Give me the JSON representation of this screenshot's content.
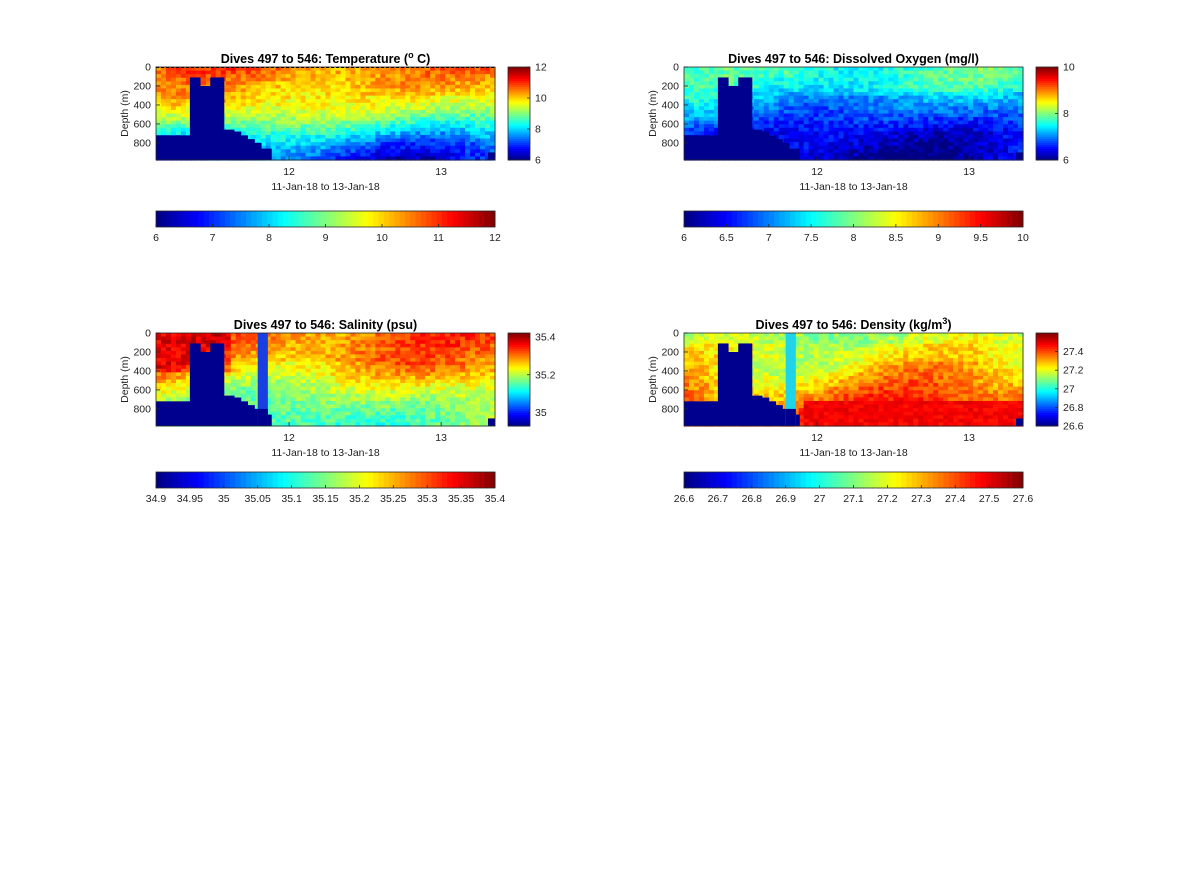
{
  "figure": {
    "panels": [
      {
        "title_main": "Dives 497 to 546: Temperature (",
        "title_sup": "o",
        "title_end": " C)",
        "ylabel": "Depth (m)",
        "xlabel": "11-Jan-18 to 13-Jan-18",
        "ytick_labels": [
          "0",
          "200",
          "400",
          "600",
          "800"
        ],
        "xtick_labels": [
          "12",
          "13"
        ],
        "side_cbar_labels": [
          "12",
          "10",
          "8",
          "6"
        ],
        "bottom_cbar_labels": [
          "6",
          "7",
          "8",
          "9",
          "10",
          "11",
          "12"
        ]
      },
      {
        "title_main": "Dives 497 to 546: Dissolved Oxygen (mg/l)",
        "title_sup": "",
        "title_end": "",
        "ylabel": "Depth (m)",
        "xlabel": "11-Jan-18 to 13-Jan-18",
        "ytick_labels": [
          "0",
          "200",
          "400",
          "600",
          "800"
        ],
        "xtick_labels": [
          "12",
          "13"
        ],
        "side_cbar_labels": [
          "10",
          "8",
          "6"
        ],
        "bottom_cbar_labels": [
          "6",
          "6.5",
          "7",
          "7.5",
          "8",
          "8.5",
          "9",
          "9.5",
          "10"
        ]
      },
      {
        "title_main": "Dives 497 to 546: Salinity (psu)",
        "title_sup": "",
        "title_end": "",
        "ylabel": "Depth (m)",
        "xlabel": "11-Jan-18 to 13-Jan-18",
        "ytick_labels": [
          "0",
          "200",
          "400",
          "600",
          "800"
        ],
        "xtick_labels": [
          "12",
          "13"
        ],
        "side_cbar_labels": [
          "35.4",
          "35.2",
          "35"
        ],
        "bottom_cbar_labels": [
          "34.9",
          "34.95",
          "35",
          "35.05",
          "35.1",
          "35.15",
          "35.2",
          "35.25",
          "35.3",
          "35.35",
          "35.4"
        ]
      },
      {
        "title_main": "Dives 497 to 546: Density (kg/m",
        "title_sup": "3",
        "title_end": ")",
        "ylabel": "Depth (m)",
        "xlabel": "11-Jan-18 to 13-Jan-18",
        "ytick_labels": [
          "0",
          "200",
          "400",
          "600",
          "800"
        ],
        "xtick_labels": [
          "12",
          "13"
        ],
        "side_cbar_labels": [
          "27.4",
          "27.2",
          "27",
          "26.8",
          "26.6"
        ],
        "bottom_cbar_labels": [
          "26.6",
          "26.7",
          "26.8",
          "26.9",
          "27",
          "27.1",
          "27.2",
          "27.3",
          "27.4",
          "27.5",
          "27.6"
        ]
      }
    ]
  },
  "chart_data": [
    {
      "type": "heatmap",
      "variable": "temperature",
      "title": "Dives 497 to 546: Temperature (o C)",
      "xlabel": "11-Jan-18 to 13-Jan-18",
      "ylabel": "Depth (m)",
      "xlim": [
        "2018-01-11T03:00",
        "2018-01-13T08:30"
      ],
      "ylim": [
        980,
        0
      ],
      "y_reversed": true,
      "xticks": [
        "2018-01-12",
        "2018-01-13"
      ],
      "yticks": [
        0,
        200,
        400,
        600,
        800
      ],
      "clim": [
        6,
        12
      ],
      "colormap": "jet",
      "depth_profile": {
        "depth": [
          0,
          100,
          200,
          300,
          400,
          500,
          600,
          700,
          800,
          900,
          980
        ],
        "value": [
          10.6,
          10.4,
          10.2,
          10.0,
          9.7,
          9.3,
          8.8,
          8.2,
          7.6,
          7.2,
          6.9
        ]
      },
      "cbar_side": {
        "clim": [
          6,
          12
        ],
        "ticks": [
          6,
          8,
          10,
          12
        ]
      },
      "cbar_bottom": {
        "clim": [
          6,
          12
        ],
        "ticks": [
          6,
          7,
          8,
          9,
          10,
          11,
          12
        ]
      }
    },
    {
      "type": "heatmap",
      "variable": "dissolved_oxygen",
      "title": "Dives 497 to 546: Dissolved Oxygen (mg/l)",
      "xlabel": "11-Jan-18 to 13-Jan-18",
      "ylabel": "Depth (m)",
      "xlim": [
        "2018-01-11T03:00",
        "2018-01-13T08:30"
      ],
      "ylim": [
        980,
        0
      ],
      "y_reversed": true,
      "xticks": [
        "2018-01-12",
        "2018-01-13"
      ],
      "yticks": [
        0,
        200,
        400,
        600,
        800
      ],
      "clim": [
        6,
        10
      ],
      "colormap": "jet",
      "depth_profile": {
        "depth": [
          0,
          100,
          200,
          300,
          400,
          500,
          600,
          700,
          800,
          900,
          980
        ],
        "value": [
          7.6,
          7.6,
          7.5,
          7.3,
          7.1,
          6.9,
          6.7,
          6.5,
          6.4,
          6.3,
          6.2
        ]
      },
      "cbar_side": {
        "clim": [
          6,
          10
        ],
        "ticks": [
          6,
          8,
          10
        ]
      },
      "cbar_bottom": {
        "clim": [
          6,
          10
        ],
        "ticks": [
          6,
          6.5,
          7,
          7.5,
          8,
          8.5,
          9,
          9.5,
          10
        ]
      }
    },
    {
      "type": "heatmap",
      "variable": "salinity",
      "title": "Dives 497 to 546: Salinity (psu)",
      "xlabel": "11-Jan-18 to 13-Jan-18",
      "ylabel": "Depth (m)",
      "xlim": [
        "2018-01-11T03:00",
        "2018-01-13T08:30"
      ],
      "ylim": [
        980,
        0
      ],
      "y_reversed": true,
      "xticks": [
        "2018-01-12",
        "2018-01-13"
      ],
      "yticks": [
        0,
        200,
        400,
        600,
        800
      ],
      "clim": [
        34.93,
        35.42
      ],
      "colormap": "jet",
      "depth_profile": {
        "depth": [
          0,
          100,
          200,
          300,
          400,
          500,
          600,
          700,
          800,
          900,
          980
        ],
        "value": [
          35.31,
          35.31,
          35.3,
          35.29,
          35.27,
          35.24,
          35.21,
          35.19,
          35.17,
          35.16,
          35.15
        ]
      },
      "cbar_side": {
        "clim": [
          34.93,
          35.42
        ],
        "ticks": [
          35,
          35.2,
          35.4
        ]
      },
      "cbar_bottom": {
        "clim": [
          34.9,
          35.4
        ],
        "ticks": [
          34.9,
          34.95,
          35,
          35.05,
          35.1,
          35.15,
          35.2,
          35.25,
          35.3,
          35.35,
          35.4
        ]
      }
    },
    {
      "type": "heatmap",
      "variable": "density",
      "title": "Dives 497 to 546: Density (kg/m3)",
      "xlabel": "11-Jan-18 to 13-Jan-18",
      "ylabel": "Depth (m)",
      "xlim": [
        "2018-01-11T03:00",
        "2018-01-13T08:30"
      ],
      "ylim": [
        980,
        0
      ],
      "y_reversed": true,
      "xticks": [
        "2018-01-12",
        "2018-01-13"
      ],
      "yticks": [
        0,
        200,
        400,
        600,
        800
      ],
      "clim": [
        26.6,
        27.6
      ],
      "colormap": "jet",
      "depth_profile": {
        "depth": [
          0,
          100,
          200,
          300,
          400,
          500,
          600,
          700,
          800,
          900,
          980
        ],
        "value": [
          27.18,
          27.19,
          27.21,
          27.23,
          27.26,
          27.3,
          27.34,
          27.38,
          27.42,
          27.45,
          27.47
        ]
      },
      "cbar_side": {
        "clim": [
          26.6,
          27.6
        ],
        "ticks": [
          26.6,
          26.8,
          27,
          27.2,
          27.4
        ]
      },
      "cbar_bottom": {
        "clim": [
          26.6,
          27.6
        ],
        "ticks": [
          26.6,
          26.7,
          26.8,
          26.9,
          27,
          27.1,
          27.2,
          27.3,
          27.4,
          27.5,
          27.6
        ]
      }
    }
  ]
}
